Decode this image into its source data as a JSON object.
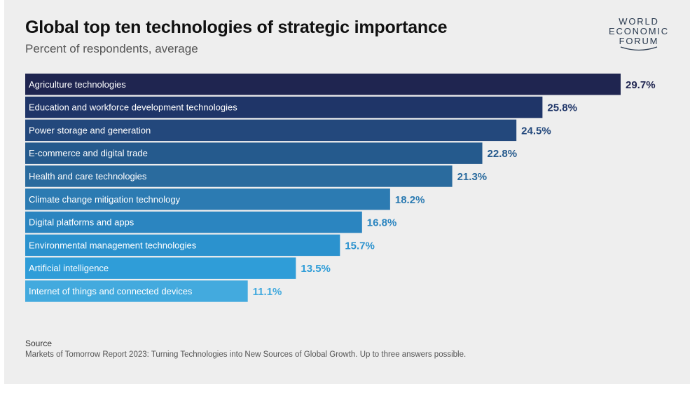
{
  "header": {
    "title": "Global top ten technologies of strategic importance",
    "subtitle": "Percent of respondents, average"
  },
  "logo": {
    "line1": "WORLD",
    "line2": "ECONOMIC",
    "line3": "FORUM"
  },
  "chart_data": {
    "type": "bar",
    "orientation": "horizontal",
    "title": "Global top ten technologies of strategic importance",
    "subtitle": "Percent of respondents, average",
    "categories": [
      "Agriculture technologies",
      "Education and workforce development technologies",
      "Power storage and generation",
      "E-commerce and digital trade",
      "Health and care technologies",
      "Climate change mitigation technology",
      "Digital platforms and apps",
      "Environmental management technologies",
      "Artificial intelligence",
      "Internet of things and connected devices"
    ],
    "values": [
      29.7,
      25.8,
      24.5,
      22.8,
      21.3,
      18.2,
      16.8,
      15.7,
      13.5,
      11.1
    ],
    "value_labels": [
      "29.7%",
      "25.8%",
      "24.5%",
      "22.8%",
      "21.3%",
      "18.2%",
      "16.8%",
      "15.7%",
      "13.5%",
      "11.1%"
    ],
    "unit": "%",
    "colors": [
      "#1f2550",
      "#1f3568",
      "#23487c",
      "#255a8d",
      "#2a6b9e",
      "#2c7bb2",
      "#2b85c0",
      "#2b92ce",
      "#2f9dd8",
      "#43aade"
    ],
    "label_text_color": "#ffffff",
    "value_label_colors": [
      "#1f2550",
      "#1f3568",
      "#23487c",
      "#255a8d",
      "#2a6b9e",
      "#2c7bb2",
      "#2b85c0",
      "#2b92ce",
      "#2f9dd8",
      "#43aade"
    ],
    "grid": false,
    "legend": "none"
  },
  "source": {
    "heading": "Source",
    "text": "Markets of Tomorrow Report 2023: Turning Technologies into New Sources of Global Growth. Up to three answers possible."
  }
}
